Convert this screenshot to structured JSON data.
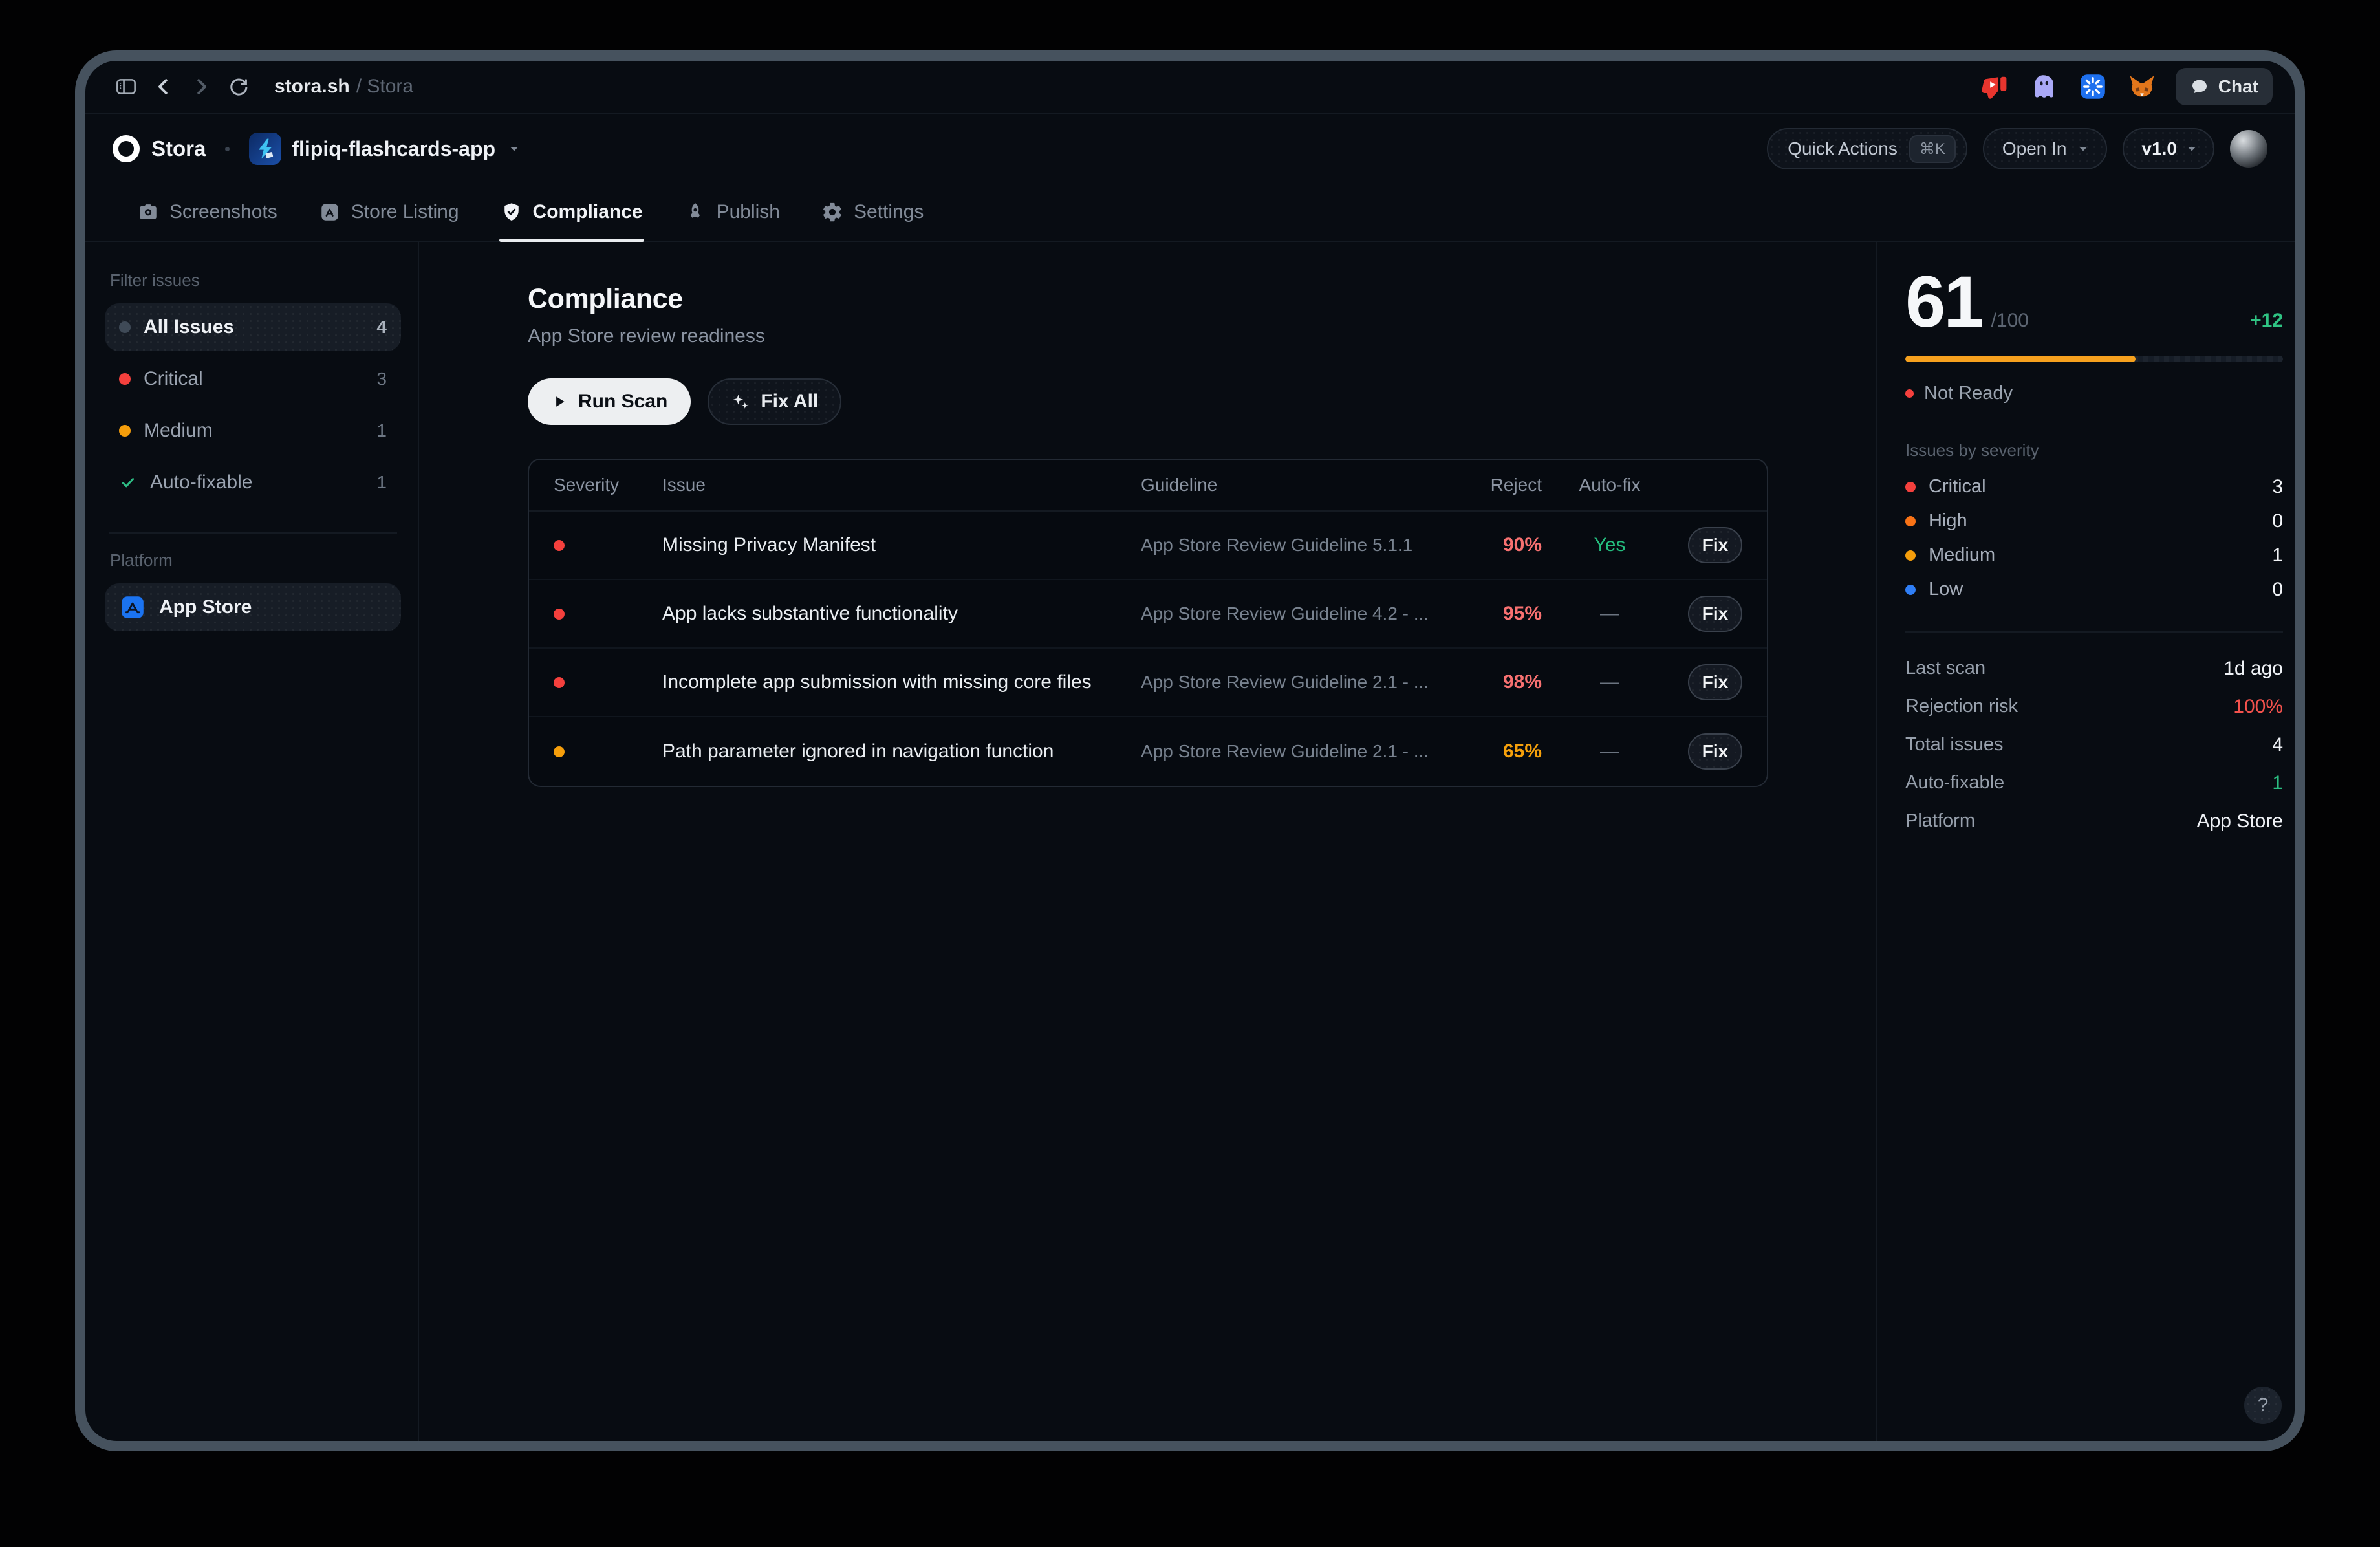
{
  "browser": {
    "url_site": "stora.sh",
    "url_path": "/ Stora",
    "chat_label": "Chat"
  },
  "header": {
    "brand": "Stora",
    "app_name": "flipiq-flashcards-app",
    "quick_actions": "Quick Actions",
    "quick_actions_kbd": "⌘K",
    "open_in": "Open In",
    "version": "v1.0"
  },
  "tabs": [
    {
      "label": "Screenshots"
    },
    {
      "label": "Store Listing"
    },
    {
      "label": "Compliance"
    },
    {
      "label": "Publish"
    },
    {
      "label": "Settings"
    }
  ],
  "sidebar": {
    "filter_label": "Filter issues",
    "items": [
      {
        "label": "All Issues",
        "count": "4",
        "dot": "#3f4a57"
      },
      {
        "label": "Critical",
        "count": "3",
        "dot": "#f4403d"
      },
      {
        "label": "Medium",
        "count": "1",
        "dot": "#f59e0b"
      },
      {
        "label": "Auto-fixable",
        "count": "1"
      }
    ],
    "platform_label": "Platform",
    "platform": "App Store"
  },
  "main": {
    "title": "Compliance",
    "subtitle": "App Store review readiness",
    "run_scan": "Run Scan",
    "fix_all": "Fix All",
    "columns": [
      "Severity",
      "Issue",
      "Guideline",
      "Reject",
      "Auto-fix"
    ],
    "rows": [
      {
        "dot": "#f4403d",
        "issue": "Missing Privacy Manifest",
        "guideline": "App Store Review Guideline 5.1.1",
        "reject": "90%",
        "reject_color": "#f87171",
        "autofix": "Yes",
        "autofix_color": "#24bd7e",
        "fix": "Fix"
      },
      {
        "dot": "#f4403d",
        "issue": "App lacks substantive functionality",
        "guideline": "App Store Review Guideline 4.2 - ...",
        "reject": "95%",
        "reject_color": "#f87171",
        "autofix": "—",
        "autofix_color": "#6b7480",
        "fix": "Fix"
      },
      {
        "dot": "#f4403d",
        "issue": "Incomplete app submission with missing core files",
        "guideline": "App Store Review Guideline 2.1 - ...",
        "reject": "98%",
        "reject_color": "#f87171",
        "autofix": "—",
        "autofix_color": "#6b7480",
        "fix": "Fix"
      },
      {
        "dot": "#f59e0b",
        "issue": "Path parameter ignored in navigation function",
        "guideline": "App Store Review Guideline 2.1 - ...",
        "reject": "65%",
        "reject_color": "#f5a00b",
        "autofix": "—",
        "autofix_color": "#6b7480",
        "fix": "Fix"
      }
    ]
  },
  "panel": {
    "score": "61",
    "score_max": "/100",
    "delta": "+12",
    "progress_pct": 61,
    "progress_color": "#f6a11e",
    "status": "Not Ready",
    "status_dot": "#f4403d",
    "severity_label": "Issues by severity",
    "severities": [
      {
        "label": "Critical",
        "count": "3",
        "dot": "#f4403d"
      },
      {
        "label": "High",
        "count": "0",
        "dot": "#f97316"
      },
      {
        "label": "Medium",
        "count": "1",
        "dot": "#f59e0b"
      },
      {
        "label": "Low",
        "count": "0",
        "dot": "#2f7ef5"
      }
    ],
    "stats": [
      {
        "label": "Last scan",
        "value": "1d ago"
      },
      {
        "label": "Rejection risk",
        "value": "100%",
        "value_color": "#f4524d"
      },
      {
        "label": "Total issues",
        "value": "4"
      },
      {
        "label": "Auto-fixable",
        "value": "1",
        "value_color": "#2bbd81"
      },
      {
        "label": "Platform",
        "value": "App Store"
      }
    ],
    "help": "?"
  }
}
